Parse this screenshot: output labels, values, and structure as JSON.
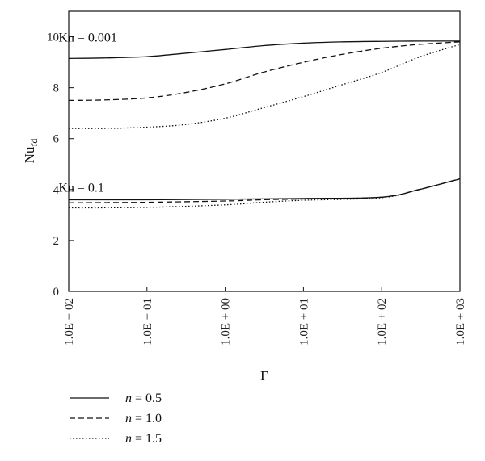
{
  "chart_data": {
    "type": "line",
    "xlabel": "Γ",
    "ylabel": "Nu",
    "ylabel_sub": "fd",
    "x_scale": "log",
    "xlim": [
      0.01,
      1000
    ],
    "ylim": [
      0,
      11
    ],
    "x_ticks": [
      {
        "value": 0.01,
        "label": "1.0E − 02"
      },
      {
        "value": 0.1,
        "label": "1.0E − 01"
      },
      {
        "value": 1,
        "label": "1.0E + 00"
      },
      {
        "value": 10,
        "label": "1.0E + 01"
      },
      {
        "value": 100,
        "label": "1.0E + 02"
      },
      {
        "value": 1000,
        "label": "1.0E + 03"
      }
    ],
    "y_ticks": [
      {
        "value": 0,
        "label": "0"
      },
      {
        "value": 2,
        "label": "2"
      },
      {
        "value": 4,
        "label": "4"
      },
      {
        "value": 6,
        "label": "6"
      },
      {
        "value": 8,
        "label": "8"
      },
      {
        "value": 10,
        "label": "10"
      }
    ],
    "grid": false,
    "legend_position": "bottom-left",
    "legend": [
      {
        "var": "n",
        "value": "= 0.5",
        "style": "solid"
      },
      {
        "var": "n",
        "value": "= 1.0",
        "style": "dashed"
      },
      {
        "var": "n",
        "value": "= 1.5",
        "style": "dotted"
      }
    ],
    "annotations": [
      {
        "text": "Kn = 0.001",
        "x": 0.25,
        "y": 10.0
      },
      {
        "text": "Kn = 0.1",
        "x": 0.25,
        "y": 4.1
      }
    ],
    "series": [
      {
        "group": "Kn = 0.001",
        "n": "0.5",
        "style": "solid",
        "x": [
          0.01,
          0.03,
          0.1,
          0.3,
          1,
          3,
          10,
          30,
          100,
          300,
          1000
        ],
        "y": [
          9.15,
          9.17,
          9.22,
          9.35,
          9.5,
          9.65,
          9.75,
          9.8,
          9.82,
          9.83,
          9.83
        ]
      },
      {
        "group": "Kn = 0.001",
        "n": "1.0",
        "style": "dashed",
        "x": [
          0.01,
          0.03,
          0.1,
          0.3,
          1,
          3,
          10,
          30,
          100,
          300,
          1000
        ],
        "y": [
          7.5,
          7.52,
          7.6,
          7.8,
          8.15,
          8.6,
          9.0,
          9.3,
          9.55,
          9.7,
          9.8
        ]
      },
      {
        "group": "Kn = 0.001",
        "n": "1.5",
        "style": "dotted",
        "x": [
          0.01,
          0.03,
          0.1,
          0.3,
          1,
          3,
          10,
          30,
          100,
          300,
          1000
        ],
        "y": [
          6.4,
          6.4,
          6.45,
          6.55,
          6.8,
          7.2,
          7.65,
          8.1,
          8.6,
          9.2,
          9.7
        ]
      },
      {
        "group": "Kn = 0.1",
        "n": "0.5",
        "style": "solid",
        "x": [
          0.01,
          0.1,
          1,
          10,
          100,
          300,
          1000
        ],
        "y": [
          3.6,
          3.6,
          3.62,
          3.65,
          3.7,
          4.0,
          4.42
        ]
      },
      {
        "group": "Kn = 0.1",
        "n": "1.0",
        "style": "dashed",
        "x": [
          0.01,
          0.1,
          1,
          3,
          10,
          100,
          300,
          1000
        ],
        "y": [
          3.48,
          3.5,
          3.55,
          3.6,
          3.63,
          3.7,
          4.0,
          4.42
        ]
      },
      {
        "group": "Kn = 0.1",
        "n": "1.5",
        "style": "dotted",
        "x": [
          0.01,
          0.1,
          1,
          3,
          10,
          100,
          300,
          1000
        ],
        "y": [
          3.28,
          3.3,
          3.4,
          3.5,
          3.58,
          3.68,
          4.0,
          4.42
        ]
      }
    ]
  }
}
